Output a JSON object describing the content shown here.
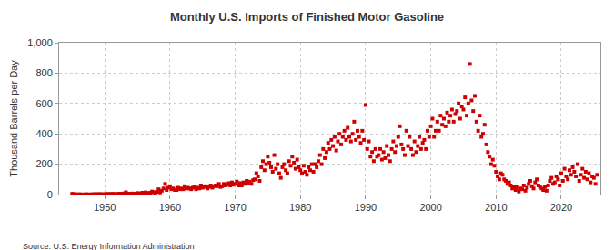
{
  "chart_data": {
    "type": "scatter",
    "title": "Monthly U.S. Imports of Finished Motor Gasoline",
    "y_label": "Thousand Barrels per Day",
    "source": "Source: U.S. Energy Information Administration",
    "color": "#cc0000",
    "marker": "square",
    "grid": true,
    "xlim": [
      1943,
      2026
    ],
    "xticks": [
      1950,
      1960,
      1970,
      1980,
      1990,
      2000,
      2010,
      2020
    ],
    "ylim": [
      0,
      1000
    ],
    "yticks": [
      0,
      200,
      400,
      600,
      800,
      {
        "value": 1000,
        "label": "1,000"
      }
    ],
    "x": [
      1945,
      1945.25,
      1945.5,
      1945.75,
      1946,
      1946.25,
      1946.5,
      1946.75,
      1947,
      1947.25,
      1947.5,
      1947.75,
      1948,
      1948.25,
      1948.5,
      1948.75,
      1949,
      1949.25,
      1949.5,
      1949.75,
      1950,
      1950.25,
      1950.5,
      1950.75,
      1951,
      1951.25,
      1951.5,
      1951.75,
      1952,
      1952.25,
      1952.5,
      1952.75,
      1953,
      1953.25,
      1953.5,
      1953.75,
      1954,
      1954.25,
      1954.5,
      1954.75,
      1955,
      1955.25,
      1955.5,
      1955.75,
      1956,
      1956.25,
      1956.5,
      1956.75,
      1957,
      1957.25,
      1957.5,
      1957.75,
      1958,
      1958.25,
      1958.5,
      1958.75,
      1959,
      1959.25,
      1959.5,
      1959.75,
      1960,
      1960.25,
      1960.5,
      1960.75,
      1961,
      1961.25,
      1961.5,
      1961.75,
      1962,
      1962.25,
      1962.5,
      1962.75,
      1963,
      1963.25,
      1963.5,
      1963.75,
      1964,
      1964.25,
      1964.5,
      1964.75,
      1965,
      1965.25,
      1965.5,
      1965.75,
      1966,
      1966.25,
      1966.5,
      1966.75,
      1967,
      1967.25,
      1967.5,
      1967.75,
      1968,
      1968.25,
      1968.5,
      1968.75,
      1969,
      1969.25,
      1969.5,
      1969.75,
      1970,
      1970.25,
      1970.5,
      1970.75,
      1971,
      1971.25,
      1971.5,
      1971.75,
      1972,
      1972.25,
      1972.5,
      1972.75,
      1973,
      1973.25,
      1973.5,
      1973.75,
      1974,
      1974.25,
      1974.5,
      1974.75,
      1975,
      1975.25,
      1975.5,
      1975.75,
      1976,
      1976.25,
      1976.5,
      1976.75,
      1977,
      1977.25,
      1977.5,
      1977.75,
      1978,
      1978.25,
      1978.5,
      1978.75,
      1979,
      1979.25,
      1979.5,
      1979.75,
      1980,
      1980.25,
      1980.5,
      1980.75,
      1981,
      1981.25,
      1981.5,
      1981.75,
      1982,
      1982.25,
      1982.5,
      1982.75,
      1983,
      1983.25,
      1983.5,
      1983.75,
      1984,
      1984.25,
      1984.5,
      1984.75,
      1985,
      1985.25,
      1985.5,
      1985.75,
      1986,
      1986.25,
      1986.5,
      1986.75,
      1987,
      1987.25,
      1987.5,
      1987.75,
      1988,
      1988.25,
      1988.5,
      1988.75,
      1989,
      1989.25,
      1989.5,
      1989.75,
      1990,
      1990.25,
      1990.5,
      1990.75,
      1991,
      1991.25,
      1991.5,
      1991.75,
      1992,
      1992.25,
      1992.5,
      1992.75,
      1993,
      1993.25,
      1993.5,
      1993.75,
      1994,
      1994.25,
      1994.5,
      1994.75,
      1995,
      1995.25,
      1995.5,
      1995.75,
      1996,
      1996.25,
      1996.5,
      1996.75,
      1997,
      1997.25,
      1997.5,
      1997.75,
      1998,
      1998.25,
      1998.5,
      1998.75,
      1999,
      1999.25,
      1999.5,
      1999.75,
      2000,
      2000.25,
      2000.5,
      2000.75,
      2001,
      2001.25,
      2001.5,
      2001.75,
      2002,
      2002.25,
      2002.5,
      2002.75,
      2003,
      2003.25,
      2003.5,
      2003.75,
      2004,
      2004.25,
      2004.5,
      2004.75,
      2005,
      2005.25,
      2005.5,
      2005.75,
      2006,
      2006.25,
      2006.5,
      2006.75,
      2007,
      2007.25,
      2007.5,
      2007.75,
      2008,
      2008.25,
      2008.5,
      2008.75,
      2009,
      2009.25,
      2009.5,
      2009.75,
      2010,
      2010.25,
      2010.5,
      2010.75,
      2011,
      2011.25,
      2011.5,
      2011.75,
      2012,
      2012.25,
      2012.5,
      2012.75,
      2013,
      2013.25,
      2013.5,
      2013.75,
      2014,
      2014.25,
      2014.5,
      2014.75,
      2015,
      2015.25,
      2015.5,
      2015.75,
      2016,
      2016.25,
      2016.5,
      2016.75,
      2017,
      2017.25,
      2017.5,
      2017.75,
      2018,
      2018.25,
      2018.5,
      2018.75,
      2019,
      2019.25,
      2019.5,
      2019.75,
      2020,
      2020.25,
      2020.5,
      2020.75,
      2021,
      2021.25,
      2021.5,
      2021.75,
      2022,
      2022.25,
      2022.5,
      2022.75,
      2023,
      2023.25,
      2023.5,
      2023.75,
      2024,
      2024.25,
      2024.5,
      2024.75,
      2025,
      2025.25,
      2025.5
    ],
    "values": [
      5,
      3,
      2,
      1,
      1,
      2,
      0,
      1,
      1,
      2,
      1,
      0,
      2,
      1,
      3,
      2,
      2,
      3,
      2,
      1,
      3,
      2,
      4,
      3,
      3,
      5,
      2,
      3,
      4,
      6,
      3,
      5,
      8,
      15,
      6,
      5,
      4,
      7,
      5,
      6,
      10,
      6,
      8,
      12,
      8,
      14,
      10,
      9,
      12,
      20,
      15,
      10,
      18,
      35,
      14,
      25,
      40,
      70,
      30,
      45,
      55,
      35,
      40,
      30,
      30,
      45,
      35,
      40,
      35,
      55,
      40,
      45,
      40,
      35,
      45,
      50,
      35,
      45,
      40,
      60,
      45,
      50,
      55,
      40,
      50,
      60,
      45,
      55,
      60,
      55,
      70,
      50,
      55,
      70,
      60,
      65,
      75,
      60,
      80,
      65,
      70,
      85,
      60,
      75,
      60,
      80,
      70,
      90,
      75,
      85,
      70,
      95,
      100,
      140,
      120,
      90,
      180,
      220,
      160,
      200,
      250,
      210,
      180,
      150,
      260,
      170,
      200,
      140,
      110,
      180,
      200,
      160,
      140,
      220,
      190,
      250,
      210,
      170,
      230,
      180,
      160,
      140,
      190,
      150,
      130,
      180,
      160,
      200,
      150,
      200,
      180,
      220,
      260,
      200,
      300,
      240,
      280,
      340,
      300,
      360,
      320,
      380,
      290,
      350,
      400,
      330,
      380,
      420,
      360,
      440,
      380,
      350,
      400,
      480,
      360,
      420,
      380,
      340,
      420,
      360,
      590,
      300,
      350,
      250,
      280,
      220,
      300,
      250,
      260,
      300,
      230,
      280,
      240,
      320,
      260,
      220,
      300,
      350,
      280,
      320,
      380,
      450,
      330,
      300,
      260,
      420,
      320,
      380,
      300,
      260,
      350,
      280,
      320,
      380,
      300,
      340,
      360,
      300,
      420,
      380,
      450,
      500,
      380,
      420,
      480,
      420,
      520,
      460,
      500,
      450,
      540,
      480,
      520,
      560,
      480,
      530,
      550,
      600,
      500,
      580,
      560,
      640,
      520,
      600,
      860,
      620,
      550,
      650,
      480,
      420,
      520,
      380,
      400,
      460,
      330,
      280,
      250,
      200,
      230,
      190,
      150,
      120,
      100,
      140,
      130,
      100,
      90,
      70,
      80,
      60,
      40,
      50,
      30,
      50,
      20,
      40,
      35,
      60,
      25,
      45,
      70,
      90,
      55,
      40,
      80,
      100,
      60,
      50,
      40,
      30,
      50,
      25,
      60,
      90,
      110,
      70,
      80,
      120,
      100,
      60,
      140,
      90,
      170,
      120,
      100,
      160,
      130,
      180,
      150,
      120,
      200,
      90,
      130,
      170,
      110,
      150,
      100,
      140,
      80,
      120,
      110,
      70,
      130
    ]
  }
}
